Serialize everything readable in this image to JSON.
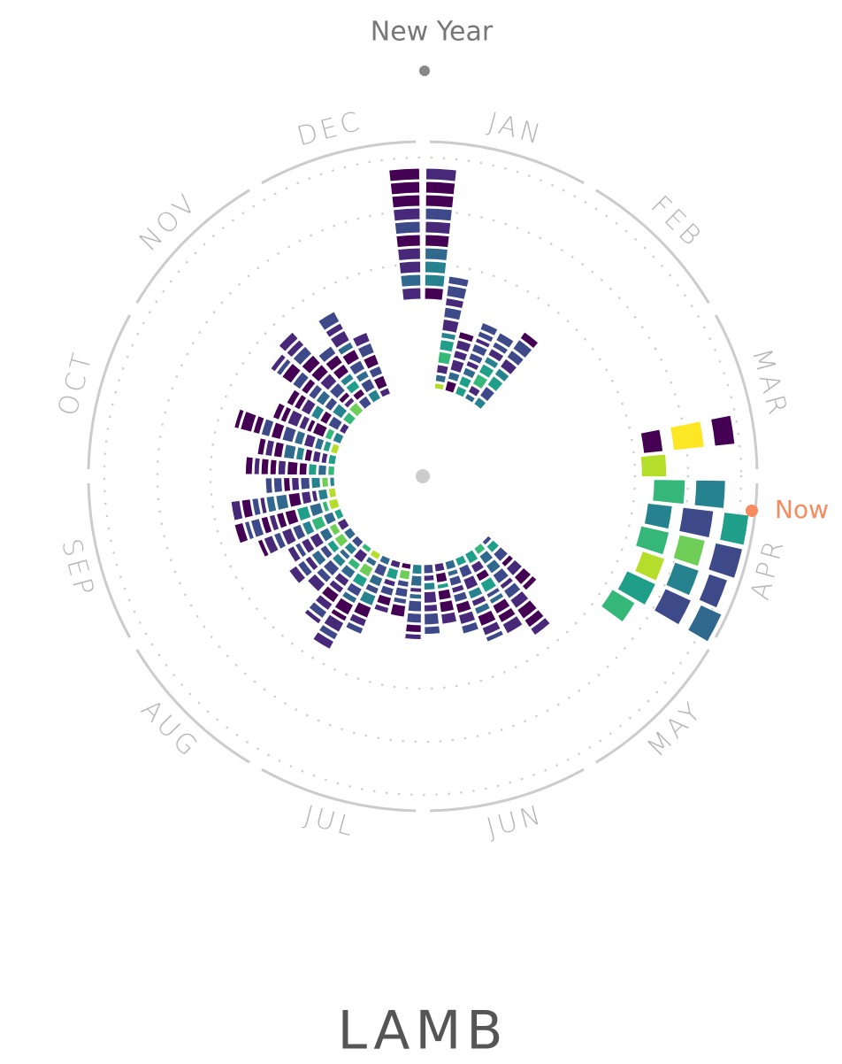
{
  "chart_data": {
    "type": "radial-calendar",
    "top_label": "New Year",
    "months": [
      "JAN",
      "FEB",
      "MAR",
      "APR",
      "MAY",
      "JUN",
      "JUL",
      "AUG",
      "SEP",
      "OCT",
      "NOV",
      "DEC"
    ],
    "now_label": "Now",
    "title": "LAMB"
  }
}
